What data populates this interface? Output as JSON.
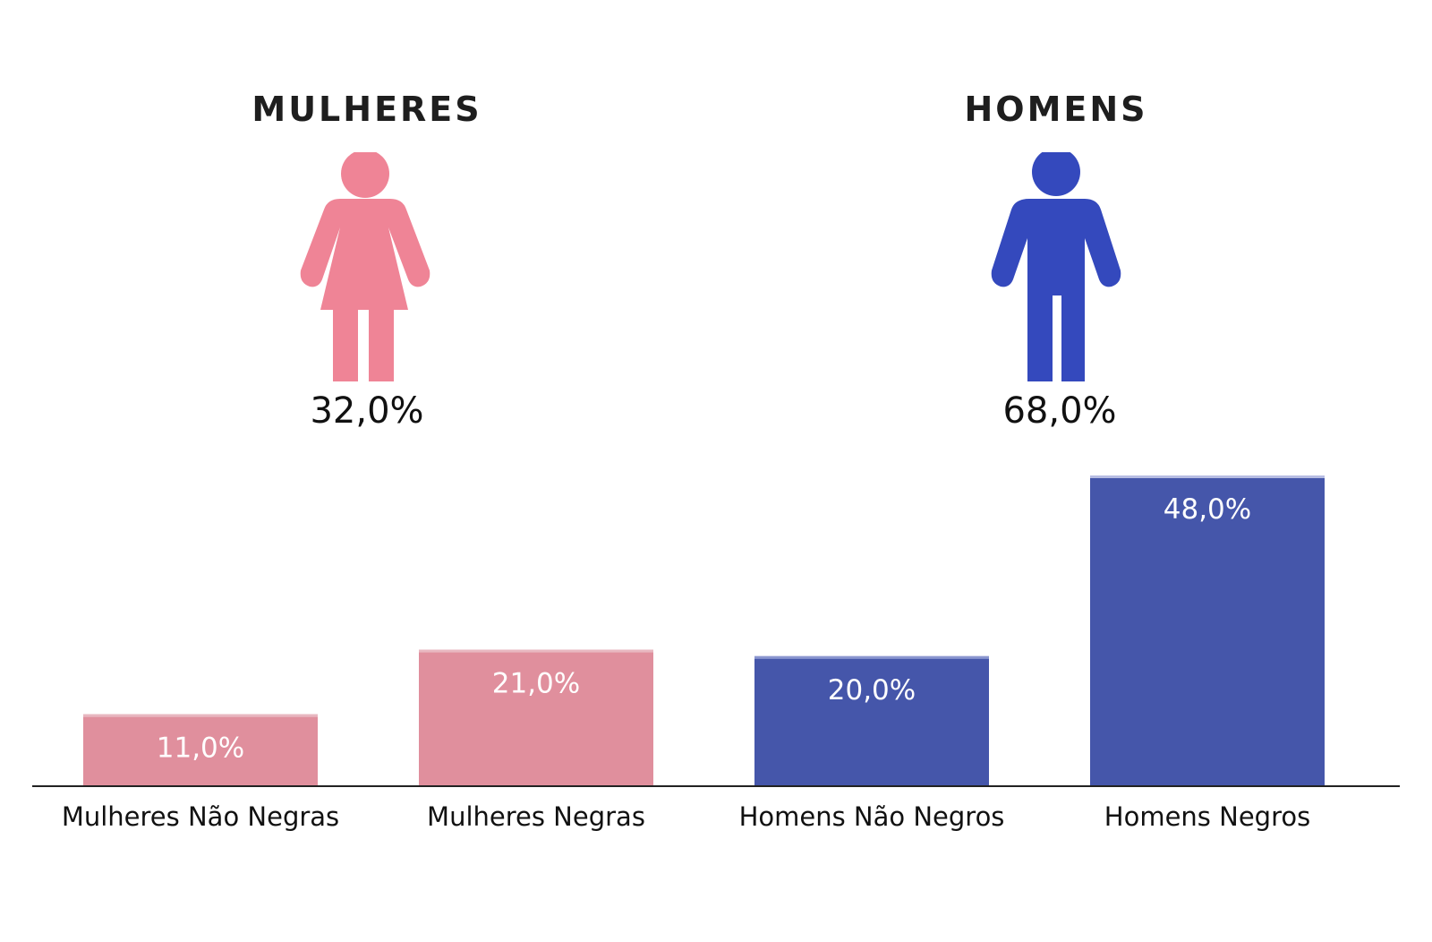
{
  "groups": {
    "women": {
      "title": "MULHERES",
      "total": "32,0%",
      "icon": "woman-icon",
      "color": "#ef8496"
    },
    "men": {
      "title": "HOMENS",
      "total": "68,0%",
      "icon": "man-icon",
      "color": "#3449bd"
    }
  },
  "chart_data": {
    "type": "bar",
    "categories": [
      "Mulheres Não Negras",
      "Mulheres Negras",
      "Homens Não Negros",
      "Homens Negros"
    ],
    "values": [
      11.0,
      21.0,
      20.0,
      48.0
    ],
    "value_labels": [
      "11,0%",
      "21,0%",
      "20,0%",
      "48,0%"
    ],
    "colors": [
      "#e08f9d",
      "#e08f9d",
      "#4556aa",
      "#4556aa"
    ],
    "top_edge_colors": [
      "#e8b7c0",
      "#e8b7c0",
      "#8a96cf",
      "#b7bde3"
    ],
    "ylim": [
      0,
      48
    ],
    "grid": false,
    "axis_color": "#222222",
    "title": "",
    "xlabel": "",
    "ylabel": ""
  }
}
